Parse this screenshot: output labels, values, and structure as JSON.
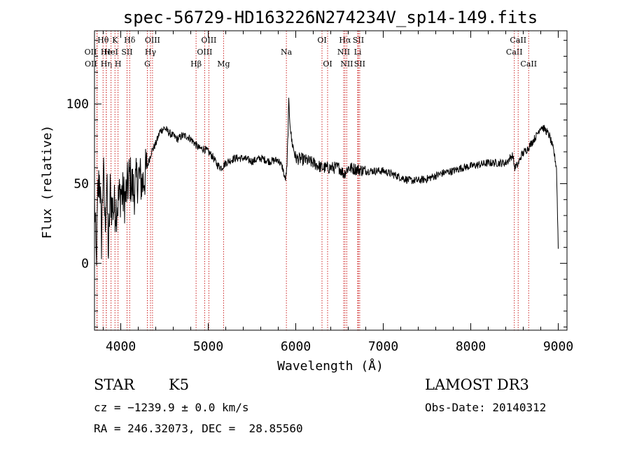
{
  "info": {
    "object_class": "STAR",
    "subclass": "K5",
    "survey": "LAMOST DR3",
    "cz_line": "cz = −1239.9 ± 0.0 km/s",
    "obs_date_line": "Obs-Date: 20140312",
    "radec_line": "RA = 246.32073, DEC =  28.85560"
  },
  "chart_data": {
    "type": "line",
    "title": "spec-56729-HD163226N274234V_sp14-149.fits",
    "xlabel": "Wavelength (Å)",
    "ylabel": "Flux (relative)",
    "xlim": [
      3700,
      9100
    ],
    "ylim": [
      -42,
      146
    ],
    "x_ticks": [
      4000,
      5000,
      6000,
      7000,
      8000,
      9000
    ],
    "y_ticks": [
      0,
      50,
      100
    ],
    "grid": false,
    "colors": {
      "spectrum": "#000000",
      "lines": "#cc2222",
      "axes": "#000000"
    },
    "spectrum_anchors": [
      [
        3700,
        40
      ],
      [
        3720,
        0
      ],
      [
        3740,
        45
      ],
      [
        3760,
        55
      ],
      [
        3780,
        15
      ],
      [
        3800,
        60
      ],
      [
        3820,
        25
      ],
      [
        3840,
        50
      ],
      [
        3860,
        5
      ],
      [
        3880,
        45
      ],
      [
        3900,
        35
      ],
      [
        3950,
        35
      ],
      [
        4000,
        45
      ],
      [
        4050,
        40
      ],
      [
        4100,
        55
      ],
      [
        4150,
        45
      ],
      [
        4200,
        55
      ],
      [
        4250,
        50
      ],
      [
        4300,
        60
      ],
      [
        4350,
        70
      ],
      [
        4400,
        75
      ],
      [
        4450,
        83
      ],
      [
        4500,
        85
      ],
      [
        4550,
        82
      ],
      [
        4600,
        80
      ],
      [
        4650,
        78
      ],
      [
        4700,
        80
      ],
      [
        4750,
        80
      ],
      [
        4800,
        78
      ],
      [
        4850,
        75
      ],
      [
        4900,
        72
      ],
      [
        4950,
        72
      ],
      [
        5000,
        70
      ],
      [
        5050,
        67
      ],
      [
        5100,
        62
      ],
      [
        5150,
        60
      ],
      [
        5200,
        63
      ],
      [
        5300,
        66
      ],
      [
        5400,
        66
      ],
      [
        5500,
        64
      ],
      [
        5600,
        66
      ],
      [
        5700,
        64
      ],
      [
        5800,
        65
      ],
      [
        5850,
        60
      ],
      [
        5880,
        52
      ],
      [
        5900,
        60
      ],
      [
        5920,
        100
      ],
      [
        5950,
        78
      ],
      [
        6000,
        66
      ],
      [
        6100,
        65
      ],
      [
        6200,
        63
      ],
      [
        6300,
        60
      ],
      [
        6400,
        60
      ],
      [
        6500,
        60
      ],
      [
        6550,
        56
      ],
      [
        6600,
        60
      ],
      [
        6700,
        59
      ],
      [
        6800,
        58
      ],
      [
        6900,
        58
      ],
      [
        7000,
        58
      ],
      [
        7100,
        56
      ],
      [
        7200,
        54
      ],
      [
        7300,
        52
      ],
      [
        7400,
        52
      ],
      [
        7500,
        53
      ],
      [
        7600,
        55
      ],
      [
        7700,
        57
      ],
      [
        7800,
        58
      ],
      [
        7900,
        60
      ],
      [
        8000,
        61
      ],
      [
        8100,
        62
      ],
      [
        8200,
        63
      ],
      [
        8300,
        63
      ],
      [
        8400,
        63
      ],
      [
        8480,
        68
      ],
      [
        8500,
        60
      ],
      [
        8540,
        62
      ],
      [
        8580,
        68
      ],
      [
        8650,
        72
      ],
      [
        8700,
        76
      ],
      [
        8750,
        80
      ],
      [
        8800,
        86
      ],
      [
        8850,
        84
      ],
      [
        8900,
        80
      ],
      [
        8950,
        70
      ],
      [
        8980,
        60
      ],
      [
        9000,
        10
      ]
    ],
    "spectral_lines": [
      {
        "label": "OII",
        "wave": 3727,
        "row": 1,
        "align": "end"
      },
      {
        "label": "OII",
        "wave": 3730,
        "row": 2,
        "align": "end"
      },
      {
        "label": "Hθ",
        "wave": 3798,
        "row": 0,
        "align": "middle"
      },
      {
        "label": "He",
        "wave": 3835,
        "row": 1,
        "align": "middle"
      },
      {
        "label": "Hη",
        "wave": 3835,
        "row": 2,
        "align": "middle"
      },
      {
        "label": "K",
        "wave": 3934,
        "row": 0,
        "align": "middle"
      },
      {
        "label": "H",
        "wave": 3969,
        "row": 2,
        "align": "middle"
      },
      {
        "label": "HeI",
        "wave": 3889,
        "row": 1,
        "align": "middle"
      },
      {
        "label": "SII",
        "wave": 4072,
        "row": 1,
        "align": "middle"
      },
      {
        "label": "Hδ",
        "wave": 4102,
        "row": 0,
        "align": "middle"
      },
      {
        "label": "OIII",
        "wave": 4363,
        "row": 0,
        "align": "middle"
      },
      {
        "label": "Hγ",
        "wave": 4340,
        "row": 1,
        "align": "middle"
      },
      {
        "label": "G",
        "wave": 4304,
        "row": 2,
        "align": "middle"
      },
      {
        "label": "Hβ",
        "wave": 4861,
        "row": 2,
        "align": "middle"
      },
      {
        "label": "OIII",
        "wave": 5007,
        "row": 0,
        "align": "middle"
      },
      {
        "label": "OIII",
        "wave": 4959,
        "row": 1,
        "align": "middle"
      },
      {
        "label": "Mg",
        "wave": 5175,
        "row": 2,
        "align": "middle"
      },
      {
        "label": "Na",
        "wave": 5893,
        "row": 1,
        "align": "middle"
      },
      {
        "label": "OI",
        "wave": 6300,
        "row": 0,
        "align": "middle"
      },
      {
        "label": "OI",
        "wave": 6364,
        "row": 2,
        "align": "middle"
      },
      {
        "label": "Hα",
        "wave": 6563,
        "row": 0,
        "align": "middle"
      },
      {
        "label": "NII",
        "wave": 6548,
        "row": 1,
        "align": "middle"
      },
      {
        "label": "NII",
        "wave": 6583,
        "row": 2,
        "align": "middle"
      },
      {
        "label": "SII",
        "wave": 6716,
        "row": 0,
        "align": "middle"
      },
      {
        "label": "Li",
        "wave": 6708,
        "row": 1,
        "align": "middle"
      },
      {
        "label": "SII",
        "wave": 6731,
        "row": 2,
        "align": "middle"
      },
      {
        "label": "CaII",
        "wave": 8498,
        "row": 1,
        "align": "middle"
      },
      {
        "label": "CaII",
        "wave": 8542,
        "row": 0,
        "align": "middle"
      },
      {
        "label": "CaII",
        "wave": 8662,
        "row": 2,
        "align": "middle"
      }
    ]
  }
}
